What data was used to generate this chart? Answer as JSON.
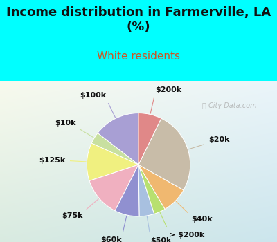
{
  "title": "Income distribution in Farmerville, LA\n(%)",
  "subtitle": "White residents",
  "title_color": "#111111",
  "subtitle_color": "#cc5522",
  "bg_color": "#00ffff",
  "chart_bg_top": "#e8f5ee",
  "chart_bg_bottom": "#d0eef5",
  "watermark": "City-Data.com",
  "slices": [
    {
      "label": "$100k",
      "value": 14.0,
      "color": "#a89fd4"
    },
    {
      "label": "$10k",
      "value": 3.5,
      "color": "#c8e0a0"
    },
    {
      "label": "$125k",
      "value": 11.5,
      "color": "#f0f080"
    },
    {
      "label": "$75k",
      "value": 12.0,
      "color": "#f0b0c0"
    },
    {
      "label": "$60k",
      "value": 7.5,
      "color": "#9090d0"
    },
    {
      "label": "$50k",
      "value": 4.5,
      "color": "#a8c0e0"
    },
    {
      "label": "> $200k",
      "value": 3.5,
      "color": "#b8e070"
    },
    {
      "label": "$40k",
      "value": 8.0,
      "color": "#f0b870"
    },
    {
      "label": "$20k",
      "value": 25.0,
      "color": "#c8bca8"
    },
    {
      "label": "$200k",
      "value": 7.0,
      "color": "#e08888"
    }
  ],
  "label_fontsize": 8,
  "title_fontsize": 13,
  "subtitle_fontsize": 11,
  "startangle": 90
}
